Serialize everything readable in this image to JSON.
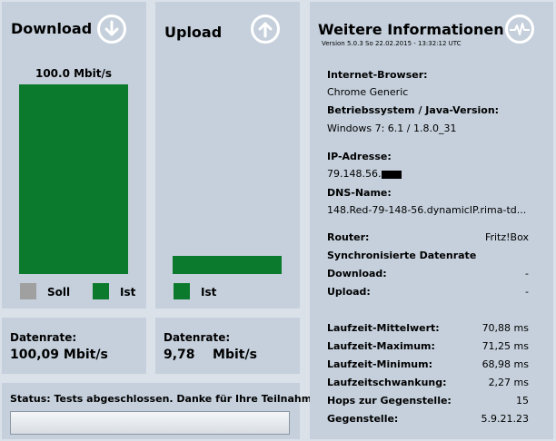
{
  "download": {
    "title": "Download",
    "bar_value_label": "100.0 Mbit/s",
    "bar_fill_fraction": 1.0,
    "legend": {
      "soll": "Soll",
      "ist": "Ist"
    },
    "icon": "arrow-down-circle-icon"
  },
  "upload": {
    "title": "Upload",
    "bar_fill_fraction": 0.0978,
    "legend": {
      "ist": "Ist"
    },
    "icon": "arrow-up-circle-icon"
  },
  "download_rate": {
    "label": "Datenrate:",
    "value": "100,09 Mbit/s"
  },
  "upload_rate": {
    "label": "Datenrate:",
    "value": "9,78    Mbit/s"
  },
  "status": {
    "text": "Status: Tests abgeschlossen. Danke für Ihre Teilnahme!"
  },
  "info": {
    "title": "Weitere Informationen",
    "version": "Version 5.0.3    So 22.02.2015 - 13:32:12 UTC",
    "icon": "pulse-circle-icon",
    "browser_label": "Internet-Browser:",
    "browser_value": "Chrome Generic",
    "os_label": "Betriebssystem / Java-Version:",
    "os_value": "Windows 7: 6.1 / 1.8.0_31",
    "ip_label": "IP-Adresse:",
    "ip_value": "79.148.56.",
    "dns_label": "DNS-Name:",
    "dns_value": "148.Red-79-148-56.dynamicIP.rima-td...",
    "router_label": "Router:",
    "router_value": "Fritz!Box",
    "sync_label": "Synchronisierte Datenrate",
    "sync_download_label": "Download:",
    "sync_download_value": "-",
    "sync_upload_label": "Upload:",
    "sync_upload_value": "-",
    "latency_rows": [
      {
        "label": "Laufzeit-Mittelwert:",
        "value": "70,88 ms"
      },
      {
        "label": "Laufzeit-Maximum:",
        "value": "71,25 ms"
      },
      {
        "label": "Laufzeit-Minimum:",
        "value": "68,98 ms"
      },
      {
        "label": "Laufzeitschwankung:",
        "value": "2,27 ms"
      },
      {
        "label": "Hops zur Gegenstelle:",
        "value": "15"
      },
      {
        "label": "Gegenstelle:",
        "value": "5.9.21.23"
      }
    ]
  },
  "colors": {
    "panel": "#c5d0dc",
    "background": "#dbe1e9",
    "ist": "#0b7a2c",
    "soll": "#a0a0a0"
  }
}
